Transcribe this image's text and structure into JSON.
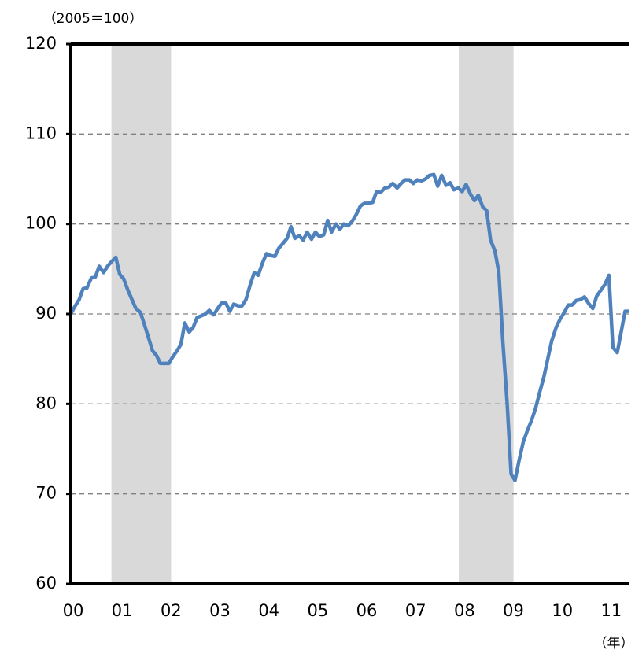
{
  "chart_data": {
    "type": "line",
    "unit_label": "（2005＝100）",
    "x_unit_label": "（年）",
    "x": [
      0,
      0.08,
      0.17,
      0.25,
      0.33,
      0.42,
      0.5,
      0.58,
      0.67,
      0.75,
      0.83,
      0.92,
      1,
      1.08,
      1.17,
      1.25,
      1.33,
      1.42,
      1.5,
      1.58,
      1.67,
      1.75,
      1.83,
      1.92,
      2,
      2.08,
      2.17,
      2.25,
      2.33,
      2.42,
      2.5,
      2.58,
      2.67,
      2.75,
      2.83,
      2.92,
      3,
      3.08,
      3.17,
      3.25,
      3.33,
      3.42,
      3.5,
      3.58,
      3.67,
      3.75,
      3.83,
      3.92,
      4,
      4.08,
      4.17,
      4.25,
      4.33,
      4.42,
      4.5,
      4.58,
      4.67,
      4.75,
      4.83,
      4.92,
      5,
      5.08,
      5.17,
      5.25,
      5.33,
      5.42,
      5.5,
      5.58,
      5.67,
      5.75,
      5.83,
      5.92,
      6,
      6.08,
      6.17,
      6.25,
      6.33,
      6.42,
      6.5,
      6.58,
      6.67,
      6.75,
      6.83,
      6.92,
      7,
      7.08,
      7.17,
      7.25,
      7.33,
      7.42,
      7.5,
      7.58,
      7.67,
      7.75,
      7.83,
      7.92,
      8,
      8.08,
      8.17,
      8.25,
      8.33,
      8.42,
      8.5,
      8.58,
      8.67,
      8.75,
      8.83,
      8.92,
      9,
      9.08,
      9.17,
      9.25,
      9.33,
      9.42,
      9.5,
      9.58,
      9.67,
      9.75,
      9.83,
      9.92,
      10,
      10.08,
      10.17,
      10.25,
      10.33,
      10.42,
      10.5,
      10.58,
      10.67,
      10.75,
      10.83,
      10.92,
      11,
      11.08,
      11.17,
      11.25,
      11.33,
      11.42
    ],
    "series": [
      {
        "color": "#4f81bd",
        "values": [
          90.0,
          90.8,
          91.6,
          92.8,
          92.9,
          94.0,
          94.1,
          95.3,
          94.6,
          95.3,
          95.8,
          96.3,
          94.4,
          93.9,
          92.6,
          91.6,
          90.6,
          90.2,
          88.9,
          87.5,
          85.9,
          85.4,
          84.5,
          84.5,
          84.5,
          85.2,
          85.9,
          86.6,
          89.0,
          88.0,
          88.5,
          89.6,
          89.8,
          90.0,
          90.4,
          89.9,
          90.6,
          91.2,
          91.2,
          90.3,
          91.1,
          90.9,
          90.9,
          91.6,
          93.3,
          94.6,
          94.3,
          95.7,
          96.7,
          96.5,
          96.4,
          97.3,
          97.8,
          98.4,
          99.7,
          98.4,
          98.7,
          98.2,
          99.1,
          98.3,
          99.1,
          98.6,
          98.8,
          100.4,
          99.1,
          100.0,
          99.4,
          100.0,
          99.8,
          100.3,
          101.0,
          102.0,
          102.3,
          102.3,
          102.4,
          103.6,
          103.5,
          104.0,
          104.1,
          104.5,
          104.0,
          104.5,
          104.9,
          104.9,
          104.5,
          104.9,
          104.8,
          105.0,
          105.4,
          105.5,
          104.2,
          105.4,
          104.3,
          104.6,
          103.8,
          104.0,
          103.6,
          104.4,
          103.3,
          102.6,
          103.2,
          101.9,
          101.5,
          98.2,
          97.0,
          94.6,
          87.0,
          80.0,
          72.2,
          71.5,
          73.9,
          75.8,
          77.0,
          78.2,
          79.5,
          81.2,
          83.0,
          85.0,
          87.0,
          88.5,
          89.4,
          90.1,
          91.0,
          91.0,
          91.5,
          91.6,
          91.9,
          91.2,
          90.6,
          92.0,
          92.6,
          93.3,
          94.3,
          86.3,
          85.7,
          88.0,
          90.3,
          90.3
        ]
      }
    ],
    "shaded": [
      [
        0.83,
        2.05
      ],
      [
        7.93,
        9.05
      ]
    ],
    "shade_color": "#d9d9d9",
    "xlim": [
      0,
      11.42
    ],
    "xticks": [
      {
        "value": 0,
        "label": "00"
      },
      {
        "value": 1,
        "label": "01"
      },
      {
        "value": 2,
        "label": "02"
      },
      {
        "value": 3,
        "label": "03"
      },
      {
        "value": 4,
        "label": "04"
      },
      {
        "value": 5,
        "label": "05"
      },
      {
        "value": 6,
        "label": "06"
      },
      {
        "value": 7,
        "label": "07"
      },
      {
        "value": 8,
        "label": "08"
      },
      {
        "value": 9,
        "label": "09"
      },
      {
        "value": 10,
        "label": "10"
      },
      {
        "value": 11,
        "label": "11"
      }
    ],
    "ylim": [
      60,
      120
    ],
    "yticks": [
      60,
      70,
      80,
      90,
      100,
      110,
      120
    ],
    "grid": true
  }
}
